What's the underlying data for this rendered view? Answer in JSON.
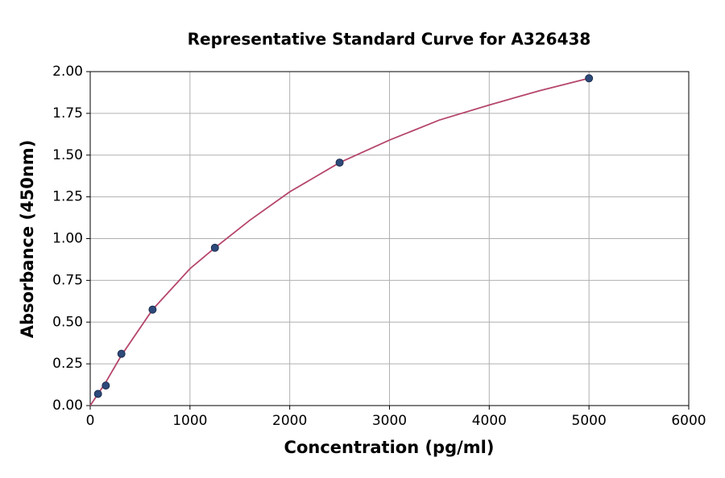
{
  "chart_data": {
    "type": "scatter",
    "title": "Representative Standard Curve for A326438",
    "x_label": "Concentration (pg/ml)",
    "y_label": "Absorbance (450nm)",
    "xlim": [
      0,
      6000
    ],
    "ylim": [
      0,
      2
    ],
    "xticks": [
      0,
      1000,
      2000,
      3000,
      4000,
      5000,
      6000
    ],
    "yticks": [
      {
        "value": 0,
        "label": "0.00"
      },
      {
        "value": 0.25,
        "label": "0.25"
      },
      {
        "value": 0.5,
        "label": "0.50"
      },
      {
        "value": 0.75,
        "label": "0.75"
      },
      {
        "value": 1,
        "label": "1.00"
      },
      {
        "value": 1.25,
        "label": "1.25"
      },
      {
        "value": 1.5,
        "label": "1.50"
      },
      {
        "value": 1.75,
        "label": "1.75"
      },
      {
        "value": 2,
        "label": "2.00"
      }
    ],
    "grid": true,
    "series": [
      {
        "type": "line",
        "color": "#b5466b",
        "x": [
          0,
          78,
          156,
          312,
          625,
          1000,
          1250,
          1600,
          2000,
          2500,
          3000,
          3500,
          4000,
          4500,
          5000
        ],
        "values": [
          0,
          0.07,
          0.14,
          0.3,
          0.575,
          0.82,
          0.945,
          1.11,
          1.28,
          1.455,
          1.59,
          1.71,
          1.8,
          1.885,
          1.96
        ]
      },
      {
        "type": "scatter",
        "color": "#2e4a7a",
        "x": [
          78.125,
          156.25,
          312.5,
          625,
          1250,
          2500,
          5000
        ],
        "values": [
          0.07,
          0.12,
          0.31,
          0.575,
          0.945,
          1.455,
          1.96
        ]
      }
    ]
  }
}
